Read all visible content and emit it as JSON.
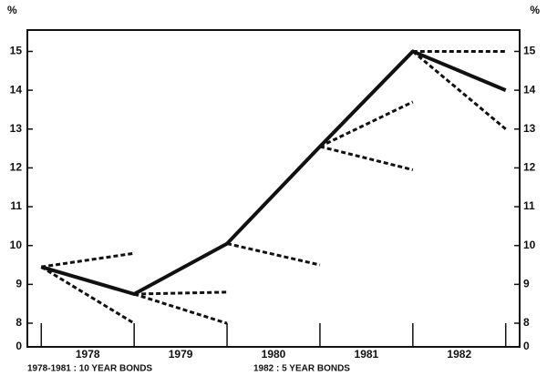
{
  "chart_data": {
    "type": "line",
    "y_unit_label_left": "%",
    "y_unit_label_right": "%",
    "categories": [
      "1978",
      "1979",
      "1980",
      "1981",
      "1982"
    ],
    "x": [
      1978,
      1979,
      1980,
      1981,
      1982,
      1983
    ],
    "xlim": [
      1977.85,
      1983.15
    ],
    "xticks": [
      1978,
      1979,
      1980,
      1981,
      1982,
      1983
    ],
    "ylim": [
      0,
      15.55
    ],
    "ybreak": [
      0,
      8
    ],
    "yticks": [
      0,
      8,
      9,
      10,
      11,
      12,
      13,
      14,
      15
    ],
    "series": [
      {
        "color": "#111111",
        "style": "solid",
        "values": [
          9.45,
          8.75,
          10.05,
          12.55,
          15.0,
          14.0
        ]
      }
    ],
    "forecasts": [
      {
        "color": "#111111",
        "style": "dashed",
        "x": [
          1978,
          1979
        ],
        "values": [
          9.45,
          9.8
        ]
      },
      {
        "color": "#111111",
        "style": "dashed",
        "x": [
          1978,
          1979
        ],
        "values": [
          9.45,
          7.95
        ]
      },
      {
        "color": "#111111",
        "style": "dashed",
        "x": [
          1979,
          1980
        ],
        "values": [
          8.75,
          8.8
        ]
      },
      {
        "color": "#111111",
        "style": "dashed",
        "x": [
          1979,
          1980
        ],
        "values": [
          8.75,
          7.95
        ]
      },
      {
        "color": "#111111",
        "style": "dashed",
        "x": [
          1980,
          1981
        ],
        "values": [
          10.05,
          9.5
        ]
      },
      {
        "color": "#111111",
        "style": "dashed",
        "x": [
          1981,
          1982
        ],
        "values": [
          12.55,
          13.7
        ]
      },
      {
        "color": "#111111",
        "style": "dashed",
        "x": [
          1981,
          1982
        ],
        "values": [
          12.55,
          11.95
        ]
      },
      {
        "color": "#111111",
        "style": "dashed",
        "x": [
          1982,
          1983
        ],
        "values": [
          15.0,
          15.0
        ]
      },
      {
        "color": "#111111",
        "style": "dashed",
        "x": [
          1982,
          1983
        ],
        "values": [
          15.0,
          13.0
        ]
      }
    ],
    "notes": [
      "1978-1981 : 10 YEAR BONDS",
      "1982 : 5 YEAR BONDS"
    ]
  }
}
